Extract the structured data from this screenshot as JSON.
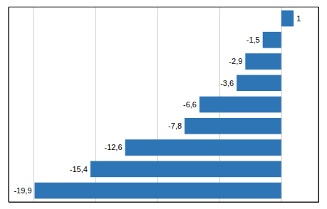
{
  "chart_data": {
    "type": "bar",
    "orientation": "horizontal",
    "categories": [
      null,
      null,
      null,
      null,
      null,
      null,
      null,
      null,
      null
    ],
    "values": [
      1,
      -1.5,
      -2.9,
      -3.6,
      -6.6,
      -7.8,
      -12.6,
      -15.4,
      -19.9
    ],
    "value_labels": [
      "1",
      "-1,5",
      "-2,9",
      "-3,6",
      "-6,6",
      "-7,8",
      "-12,6",
      "-15,4",
      "-19,9"
    ],
    "data_labels": true,
    "color": "#2E75B6",
    "xlim": [
      -22,
      3
    ],
    "xticks": [
      -20,
      -15,
      -10,
      -5,
      0
    ],
    "grid": true,
    "tick_labels": false
  }
}
